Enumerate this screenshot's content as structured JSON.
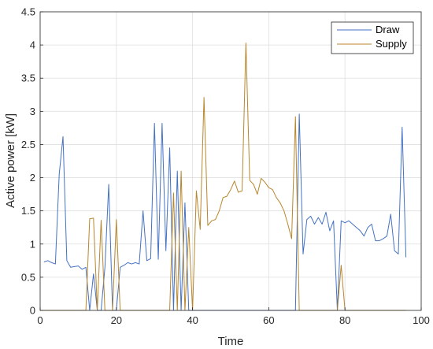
{
  "chart_data": {
    "type": "line",
    "xlabel": "Time",
    "ylabel": "Active power [kW]",
    "xlim": [
      0,
      100
    ],
    "ylim": [
      0,
      4.5
    ],
    "xticks": [
      0,
      20,
      40,
      60,
      80,
      100
    ],
    "yticks": [
      0,
      0.5,
      1,
      1.5,
      2,
      2.5,
      3,
      3.5,
      4,
      4.5
    ],
    "xtick_labels": [
      "0",
      "20",
      "40",
      "60",
      "80",
      "100"
    ],
    "ytick_labels": [
      "0",
      "0.5",
      "1",
      "1.5",
      "2",
      "2.5",
      "3",
      "3.5",
      "4",
      "4.5"
    ],
    "grid": true,
    "legend_position": "top-right",
    "series": [
      {
        "name": "Draw",
        "color": "#4472C4",
        "x": [
          1,
          2,
          3,
          4,
          5,
          6,
          7,
          8,
          9,
          10,
          11,
          12,
          13,
          14,
          15,
          16,
          17,
          18,
          19,
          20,
          21,
          22,
          23,
          24,
          25,
          26,
          27,
          28,
          29,
          30,
          31,
          32,
          33,
          34,
          35,
          36,
          37,
          38,
          39,
          40,
          41,
          42,
          67,
          68,
          69,
          70,
          71,
          72,
          73,
          74,
          75,
          76,
          77,
          78,
          79,
          80,
          81,
          82,
          83,
          84,
          85,
          86,
          87,
          88,
          89,
          90,
          91,
          92,
          93,
          94,
          95,
          96
        ],
        "y": [
          0.73,
          0.75,
          0.72,
          0.7,
          2.05,
          2.62,
          0.75,
          0.65,
          0.66,
          0.67,
          0.62,
          0.65,
          0.0,
          0.55,
          0.0,
          0.0,
          0.65,
          1.9,
          0.0,
          0.0,
          0.65,
          0.68,
          0.72,
          0.7,
          0.72,
          0.7,
          1.5,
          0.75,
          0.78,
          2.82,
          0.77,
          2.82,
          0.9,
          2.45,
          0.0,
          2.1,
          0.0,
          1.62,
          0.0,
          0.0,
          0.0,
          0.0,
          0.0,
          2.96,
          0.85,
          1.37,
          1.42,
          1.3,
          1.4,
          1.3,
          1.48,
          1.2,
          1.35,
          0.0,
          1.35,
          1.32,
          1.35,
          1.3,
          1.25,
          1.2,
          1.12,
          1.25,
          1.3,
          1.05,
          1.05,
          1.08,
          1.12,
          1.45,
          0.9,
          0.85,
          2.76,
          0.8
        ]
      },
      {
        "name": "Supply",
        "color": "#B8862B",
        "x": [
          0,
          5,
          10,
          12,
          13,
          14,
          15,
          16,
          17,
          18,
          19,
          20,
          21,
          30,
          33,
          34,
          35,
          36,
          37,
          38,
          39,
          40,
          41,
          42,
          43,
          44,
          45,
          46,
          47,
          48,
          49,
          50,
          51,
          52,
          53,
          54,
          55,
          56,
          57,
          58,
          59,
          60,
          61,
          62,
          63,
          64,
          65,
          66,
          67,
          68,
          78,
          79,
          80,
          96
        ],
        "y": [
          0,
          0,
          0,
          0,
          1.38,
          1.39,
          0.0,
          1.36,
          0.0,
          0.0,
          0.0,
          1.37,
          0.0,
          0.0,
          0.0,
          0.0,
          1.77,
          0.0,
          2.1,
          0.0,
          1.25,
          0.0,
          1.8,
          1.22,
          3.21,
          1.28,
          1.35,
          1.37,
          1.5,
          1.7,
          1.72,
          1.82,
          1.95,
          1.78,
          1.8,
          4.03,
          1.96,
          1.9,
          1.75,
          1.99,
          1.93,
          1.85,
          1.82,
          1.7,
          1.62,
          1.5,
          1.3,
          1.08,
          2.92,
          0.0,
          0.0,
          0.68,
          0.0,
          0.0
        ]
      }
    ]
  }
}
